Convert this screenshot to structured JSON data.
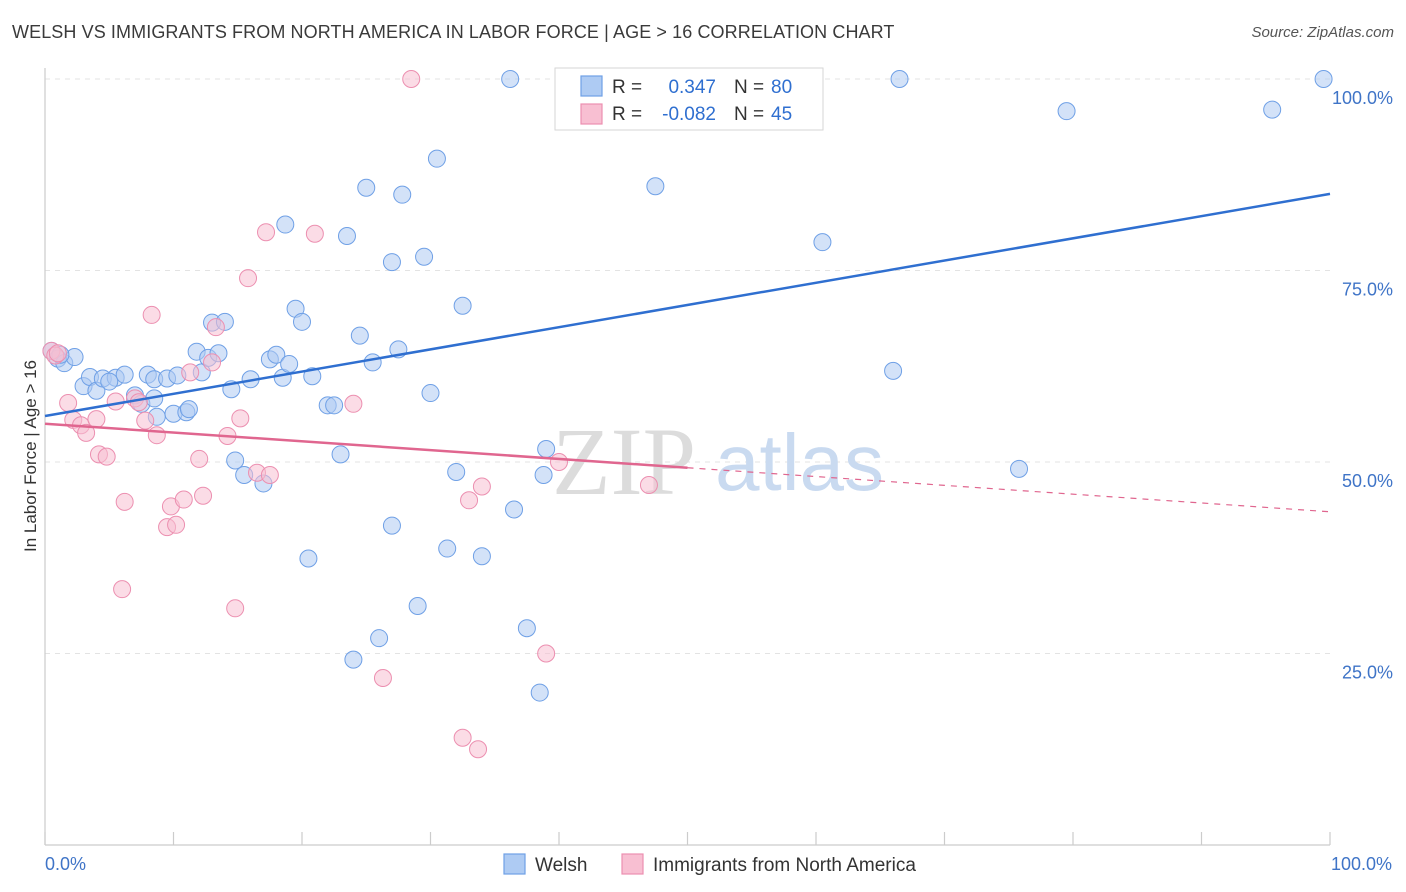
{
  "header": {
    "title": "WELSH VS IMMIGRANTS FROM NORTH AMERICA IN LABOR FORCE | AGE > 16 CORRELATION CHART",
    "source": "Source: ZipAtlas.com"
  },
  "watermark": {
    "zip": "ZIP",
    "atlas": "atlas"
  },
  "legend": {
    "r_label": "R =",
    "n_label": "N =",
    "welsh": {
      "r": "0.347",
      "n": "80"
    },
    "imm": {
      "r": "-0.082",
      "n": "45"
    }
  },
  "chart_data": {
    "type": "scatter",
    "title": "WELSH VS IMMIGRANTS FROM NORTH AMERICA IN LABOR FORCE | AGE > 16 CORRELATION CHART",
    "xlabel": "",
    "ylabel": "In Labor Force | Age > 16",
    "xlim": [
      0,
      100
    ],
    "ylim": [
      0,
      100
    ],
    "x_tick_labels": [
      "0.0%",
      "100.0%"
    ],
    "y_ticks": [
      {
        "value": 25,
        "label": "25.0%"
      },
      {
        "value": 50,
        "label": "50.0%"
      },
      {
        "value": 75,
        "label": "75.0%"
      },
      {
        "value": 100,
        "label": "100.0%"
      }
    ],
    "grid": true,
    "legend_position": "bottom",
    "series": [
      {
        "name": "Welsh",
        "color": "#6fa0e6",
        "fill": "#aecbf3",
        "trend": {
          "x": [
            0,
            100
          ],
          "y": [
            56.0,
            85.0
          ],
          "dashed_from": null
        },
        "points": [
          [
            0.5,
            64.5
          ],
          [
            1.0,
            63.5
          ],
          [
            1.5,
            62.9
          ],
          [
            2.3,
            63.7
          ],
          [
            3.0,
            59.9
          ],
          [
            3.5,
            61.1
          ],
          [
            4.0,
            59.3
          ],
          [
            4.5,
            60.9
          ],
          [
            5.5,
            61.0
          ],
          [
            6.2,
            61.4
          ],
          [
            7.0,
            58.7
          ],
          [
            7.5,
            57.6
          ],
          [
            8.0,
            61.4
          ],
          [
            8.5,
            60.8
          ],
          [
            8.5,
            58.3
          ],
          [
            8.7,
            55.9
          ],
          [
            9.5,
            60.9
          ],
          [
            10.0,
            56.3
          ],
          [
            10.3,
            61.3
          ],
          [
            11.0,
            56.5
          ],
          [
            11.2,
            56.9
          ],
          [
            11.8,
            64.4
          ],
          [
            12.2,
            61.7
          ],
          [
            12.7,
            63.6
          ],
          [
            13.0,
            68.2
          ],
          [
            13.5,
            64.2
          ],
          [
            14.0,
            68.3
          ],
          [
            14.5,
            59.5
          ],
          [
            14.8,
            50.2
          ],
          [
            15.5,
            48.3
          ],
          [
            16.0,
            60.8
          ],
          [
            17.0,
            47.2
          ],
          [
            17.5,
            63.4
          ],
          [
            18.0,
            64.0
          ],
          [
            18.5,
            61.0
          ],
          [
            19.0,
            62.8
          ],
          [
            18.7,
            81.0
          ],
          [
            19.5,
            70.0
          ],
          [
            20.0,
            68.3
          ],
          [
            20.5,
            37.4
          ],
          [
            22.0,
            57.4
          ],
          [
            22.5,
            57.4
          ],
          [
            23.0,
            51.0
          ],
          [
            23.5,
            79.5
          ],
          [
            24.5,
            66.5
          ],
          [
            24.0,
            24.2
          ],
          [
            25.0,
            85.8
          ],
          [
            25.5,
            63.0
          ],
          [
            26.0,
            27.0
          ],
          [
            27.0,
            41.7
          ],
          [
            27.0,
            76.1
          ],
          [
            27.5,
            64.7
          ],
          [
            27.8,
            84.9
          ],
          [
            29.0,
            31.2
          ],
          [
            29.5,
            76.8
          ],
          [
            30.0,
            59.0
          ],
          [
            30.5,
            89.6
          ],
          [
            31.3,
            38.7
          ],
          [
            32.0,
            48.7
          ],
          [
            32.5,
            70.4
          ],
          [
            34.0,
            37.7
          ],
          [
            36.5,
            43.8
          ],
          [
            36.2,
            100.0
          ],
          [
            37.5,
            28.3
          ],
          [
            38.5,
            19.9
          ],
          [
            38.8,
            48.3
          ],
          [
            39.0,
            51.7
          ],
          [
            41.0,
            100.0
          ],
          [
            45.2,
            100.0
          ],
          [
            47.5,
            86.0
          ],
          [
            60.5,
            78.7
          ],
          [
            66.0,
            61.9
          ],
          [
            66.5,
            100.0
          ],
          [
            75.8,
            49.1
          ],
          [
            79.5,
            95.8
          ],
          [
            95.5,
            96.0
          ],
          [
            99.5,
            100.0
          ],
          [
            1.2,
            64.0
          ],
          [
            5.0,
            60.5
          ],
          [
            20.8,
            61.2
          ]
        ]
      },
      {
        "name": "Immigrants from North America",
        "color": "#ec8fb0",
        "fill": "#f8bfd2",
        "trend": {
          "x": [
            0,
            100
          ],
          "y": [
            55.0,
            43.5
          ],
          "dashed_from": 50
        },
        "points": [
          [
            0.5,
            64.5
          ],
          [
            0.8,
            63.9
          ],
          [
            1.0,
            64.2
          ],
          [
            1.8,
            57.7
          ],
          [
            2.2,
            55.5
          ],
          [
            2.8,
            54.8
          ],
          [
            3.2,
            53.8
          ],
          [
            4.0,
            55.6
          ],
          [
            4.2,
            51.0
          ],
          [
            4.8,
            50.7
          ],
          [
            5.5,
            57.9
          ],
          [
            6.2,
            44.8
          ],
          [
            6.0,
            33.4
          ],
          [
            7.0,
            58.3
          ],
          [
            7.3,
            57.8
          ],
          [
            7.8,
            55.4
          ],
          [
            8.3,
            69.2
          ],
          [
            8.7,
            53.5
          ],
          [
            9.5,
            41.5
          ],
          [
            9.8,
            44.2
          ],
          [
            10.2,
            41.8
          ],
          [
            10.8,
            45.1
          ],
          [
            11.3,
            61.7
          ],
          [
            12.0,
            50.4
          ],
          [
            12.3,
            45.6
          ],
          [
            13.0,
            63.0
          ],
          [
            13.3,
            67.6
          ],
          [
            14.2,
            53.4
          ],
          [
            14.8,
            30.9
          ],
          [
            15.2,
            55.7
          ],
          [
            15.8,
            74.0
          ],
          [
            16.5,
            48.6
          ],
          [
            17.5,
            48.3
          ],
          [
            17.2,
            80.0
          ],
          [
            21.0,
            79.8
          ],
          [
            24.0,
            57.6
          ],
          [
            26.3,
            21.8
          ],
          [
            28.5,
            100.0
          ],
          [
            32.5,
            14.0
          ],
          [
            33.0,
            45.0
          ],
          [
            33.7,
            12.5
          ],
          [
            34.0,
            46.8
          ],
          [
            39.0,
            25.0
          ],
          [
            47.0,
            47.0
          ],
          [
            40.0,
            50.0
          ]
        ]
      }
    ]
  },
  "bottom_legend": {
    "items": [
      {
        "label": "Welsh"
      },
      {
        "label": "Immigrants from North America"
      }
    ]
  }
}
